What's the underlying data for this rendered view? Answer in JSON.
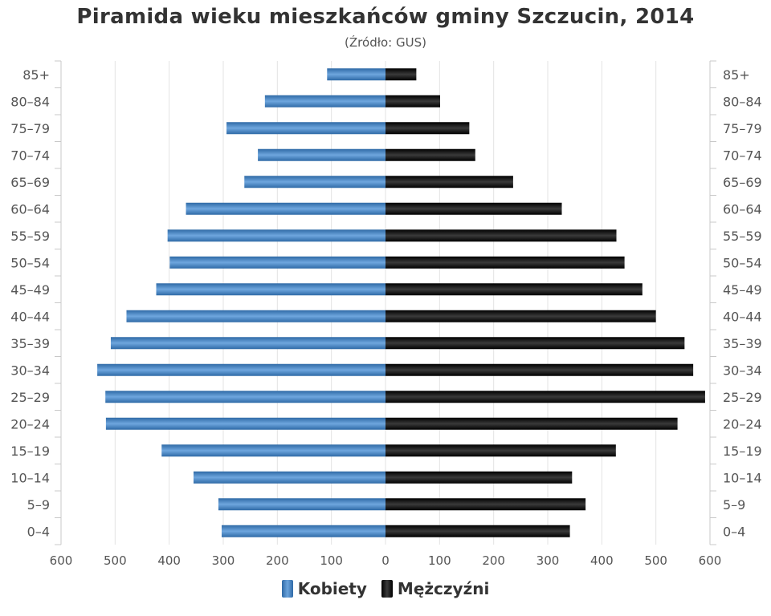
{
  "chart_data": {
    "type": "bar",
    "orientation": "horizontal-population-pyramid",
    "title": "Piramida wieku mieszkańców gminy Szczucin, 2014",
    "subtitle": "(Źródło: GUS)",
    "categories": [
      "0–4",
      "5–9",
      "10–14",
      "15–19",
      "20–24",
      "25–29",
      "30–34",
      "35–39",
      "40–44",
      "45–49",
      "50–54",
      "55–59",
      "60–64",
      "65–69",
      "70–74",
      "75–79",
      "80–84",
      "85+"
    ],
    "series": [
      {
        "name": "Kobiety",
        "color": "#3d7ab8",
        "values": [
          303,
          309,
          355,
          414,
          517,
          518,
          533,
          508,
          479,
          424,
          399,
          403,
          369,
          261,
          236,
          294,
          223,
          108
        ]
      },
      {
        "name": "Mężczyźni",
        "color": "#111111",
        "values": [
          341,
          370,
          345,
          426,
          540,
          591,
          569,
          553,
          500,
          475,
          442,
          427,
          326,
          236,
          166,
          155,
          101,
          57
        ]
      }
    ],
    "xlim": [
      -600,
      600
    ],
    "x_ticks": [
      "600",
      "500",
      "400",
      "300",
      "200",
      "100",
      "0",
      "100",
      "200",
      "300",
      "400",
      "500",
      "600"
    ],
    "grid": true,
    "legend_position": "bottom-center"
  }
}
